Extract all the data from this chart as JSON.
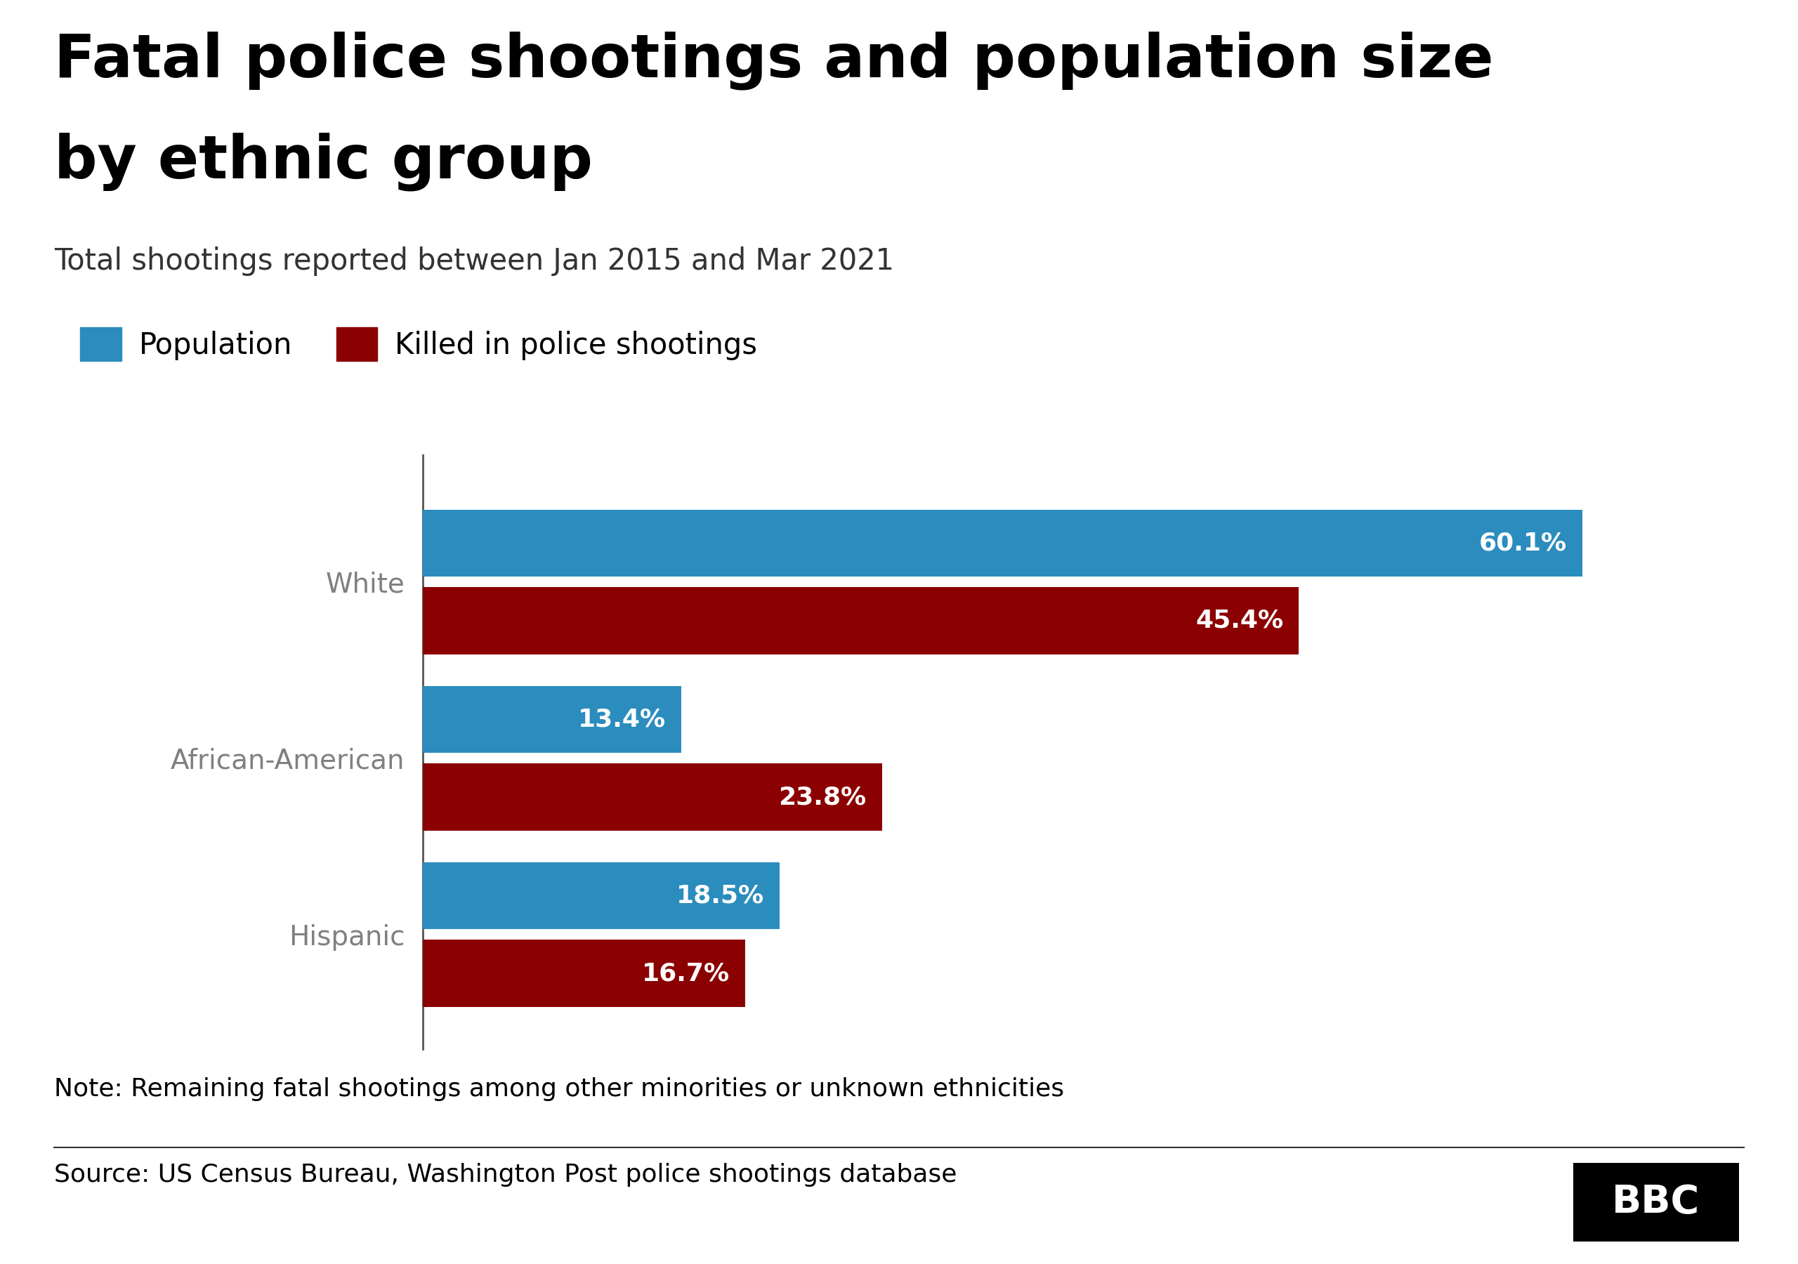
{
  "title_line1": "Fatal police shootings and population size",
  "title_line2": "by ethnic group",
  "subtitle": "Total shootings reported between Jan 2015 and Mar 2021",
  "note": "Note: Remaining fatal shootings among other minorities or unknown ethnicities",
  "source": "Source: US Census Bureau, Washington Post police shootings database",
  "legend_labels": [
    "Population",
    "Killed in police shootings"
  ],
  "categories": [
    "White",
    "African-American",
    "Hispanic"
  ],
  "population": [
    60.1,
    13.4,
    18.5
  ],
  "killed": [
    45.4,
    23.8,
    16.7
  ],
  "color_population": "#2b8cbe",
  "color_killed": "#8b0000",
  "background_color": "#ffffff",
  "ylabel_color": "#808080",
  "title_color": "#000000",
  "subtitle_color": "#333333",
  "note_color": "#000000",
  "source_color": "#000000",
  "bar_height": 0.38,
  "xlim": [
    0,
    68
  ],
  "title_fontsize": 62,
  "subtitle_fontsize": 30,
  "legend_fontsize": 30,
  "label_fontsize": 26,
  "yticklabel_fontsize": 28,
  "note_fontsize": 26,
  "source_fontsize": 26
}
